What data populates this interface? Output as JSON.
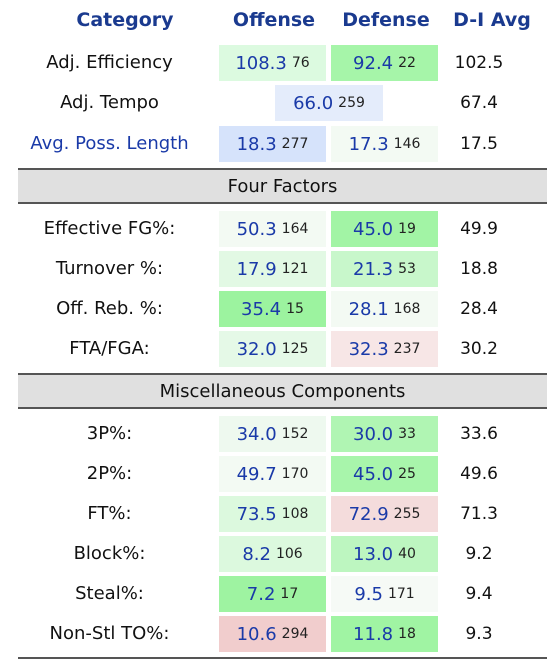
{
  "headers": [
    "Category",
    "Offense",
    "Defense",
    "D-I Avg"
  ],
  "summary": [
    {
      "label": "Adj. Efficiency",
      "off": {
        "value": "108.3",
        "rank": "76",
        "style": "background:#dcfae0"
      },
      "def": {
        "value": "92.4",
        "rank": "22",
        "style": "background:#a6f5a9"
      },
      "avg": "102.5"
    },
    {
      "label": "Adj. Tempo",
      "cell": {
        "value": "66.0",
        "rank": "259",
        "style": "background:#e4ecfb"
      },
      "avg": "67.4"
    },
    {
      "label": "Avg. Poss. Length",
      "off": {
        "value": "18.3",
        "rank": "277",
        "style": "background:#d6e3fb"
      },
      "def": {
        "value": "17.3",
        "rank": "146",
        "style": "background:#f3faf3"
      },
      "avg": "17.5"
    }
  ],
  "sections": [
    {
      "title": "Four Factors",
      "rows": [
        {
          "label": "Effective FG%:",
          "off": {
            "value": "50.3",
            "rank": "164",
            "style": "background:#f3faf3"
          },
          "def": {
            "value": "45.0",
            "rank": "19",
            "style": "background:#a2f4a5"
          },
          "avg": "49.9"
        },
        {
          "label": "Turnover %:",
          "off": {
            "value": "17.9",
            "rank": "121",
            "style": "background:#e2f9e4"
          },
          "def": {
            "value": "21.3",
            "rank": "53",
            "style": "background:#c8f7cb"
          },
          "avg": "18.8"
        },
        {
          "label": "Off. Reb. %:",
          "off": {
            "value": "35.4",
            "rank": "15",
            "style": "background:#9cf39f"
          },
          "def": {
            "value": "28.1",
            "rank": "168",
            "style": "background:#f3faf3"
          },
          "avg": "28.4"
        },
        {
          "label": "FTA/FGA:",
          "off": {
            "value": "32.0",
            "rank": "125",
            "style": "background:#e5f9e7"
          },
          "def": {
            "value": "32.3",
            "rank": "237",
            "style": "background:#f7e6e6"
          },
          "avg": "30.2"
        }
      ]
    },
    {
      "title": "Miscellaneous Components",
      "rows": [
        {
          "label": "3P%:",
          "off": {
            "value": "34.0",
            "rank": "152",
            "style": "background:#eef9ef"
          },
          "def": {
            "value": "30.0",
            "rank": "33",
            "style": "background:#b0f5b3"
          },
          "avg": "33.6"
        },
        {
          "label": "2P%:",
          "off": {
            "value": "49.7",
            "rank": "170",
            "style": "background:#f3faf3"
          },
          "def": {
            "value": "45.0",
            "rank": "25",
            "style": "background:#a8f5ab"
          },
          "avg": "49.6"
        },
        {
          "label": "FT%:",
          "off": {
            "value": "73.5",
            "rank": "108",
            "style": "background:#dcf9de"
          },
          "def": {
            "value": "72.9",
            "rank": "255",
            "style": "background:#f4dcdc"
          },
          "avg": "71.3"
        },
        {
          "label": "Block%:",
          "off": {
            "value": "8.2",
            "rank": "106",
            "style": "background:#dcf9de"
          },
          "def": {
            "value": "13.0",
            "rank": "40",
            "style": "background:#bdf6c0"
          },
          "avg": "9.2"
        },
        {
          "label": "Steal%:",
          "off": {
            "value": "7.2",
            "rank": "17",
            "style": "background:#9ef3a1"
          },
          "def": {
            "value": "9.5",
            "rank": "171",
            "style": "background:#f6faf6"
          },
          "avg": "9.4"
        },
        {
          "label": "Non-Stl TO%:",
          "off": {
            "value": "10.6",
            "rank": "294",
            "style": "background:#f1cdcd"
          },
          "def": {
            "value": "11.8",
            "rank": "18",
            "style": "background:#a0f4a3"
          },
          "avg": "9.3"
        }
      ]
    }
  ]
}
